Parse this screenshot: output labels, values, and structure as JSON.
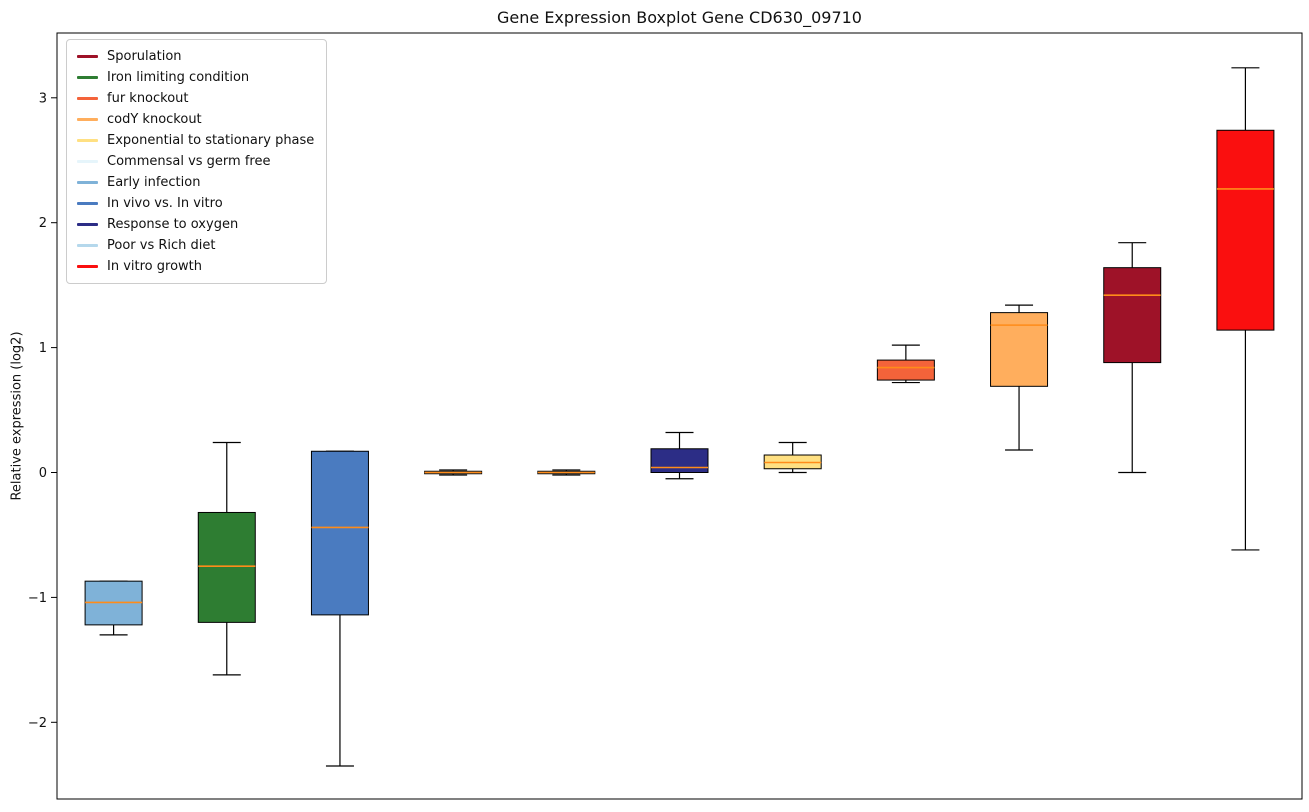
{
  "chart_data": {
    "type": "boxplot",
    "title": "Gene Expression Boxplot Gene CD630_09710",
    "xlabel": "",
    "ylabel": "Relative expression (log2)",
    "ylim": [
      -2.61,
      3.52
    ],
    "grid": false,
    "legend_position": "upper-left",
    "axis_color": "#000000",
    "median_color": "#ff8c1a",
    "y_ticks": [
      {
        "value": 3,
        "label": "3"
      },
      {
        "value": 2,
        "label": "2"
      },
      {
        "value": 1,
        "label": "1"
      },
      {
        "value": 0,
        "label": "0"
      },
      {
        "value": -1,
        "label": "−1"
      },
      {
        "value": -2,
        "label": "−2"
      }
    ],
    "legend_order": [
      "Sporulation",
      "Iron limiting condition",
      "fur knockout",
      "codY knockout",
      "Exponential to stationary phase",
      "Commensal vs germ free",
      "Early infection",
      "In vivo vs. In vitro",
      "Response to oxygen",
      "Poor vs Rich diet",
      "In vitro growth"
    ],
    "series": [
      {
        "label": "Early infection",
        "color": "#7fb2d8",
        "whisker_low": -1.3,
        "q1": -1.22,
        "median": -1.04,
        "q3": -0.87,
        "whisker_high": -0.87
      },
      {
        "label": "Iron limiting condition",
        "color": "#2e7d32",
        "whisker_low": -1.62,
        "q1": -1.2,
        "median": -0.75,
        "q3": -0.32,
        "whisker_high": 0.24
      },
      {
        "label": "In vivo vs. In vitro",
        "color": "#4a7bc0",
        "whisker_low": -2.35,
        "q1": -1.14,
        "median": -0.44,
        "q3": 0.17,
        "whisker_high": 0.17
      },
      {
        "label": "Commensal vs germ free",
        "color": "#e6f5fb",
        "whisker_low": -0.02,
        "q1": -0.01,
        "median": 0.0,
        "q3": 0.01,
        "whisker_high": 0.02
      },
      {
        "label": "Poor vs Rich diet",
        "color": "#b5d8ec",
        "whisker_low": -0.02,
        "q1": -0.01,
        "median": 0.0,
        "q3": 0.01,
        "whisker_high": 0.02
      },
      {
        "label": "Response to oxygen",
        "color": "#2c2d86",
        "whisker_low": -0.05,
        "q1": 0.0,
        "median": 0.04,
        "q3": 0.19,
        "whisker_high": 0.32
      },
      {
        "label": "Exponential to stationary phase",
        "color": "#ffe082",
        "whisker_low": 0.0,
        "q1": 0.03,
        "median": 0.08,
        "q3": 0.14,
        "whisker_high": 0.24
      },
      {
        "label": "fur knockout",
        "color": "#f4633a",
        "whisker_low": 0.72,
        "q1": 0.74,
        "median": 0.84,
        "q3": 0.9,
        "whisker_high": 1.02
      },
      {
        "label": "codY knockout",
        "color": "#ffae5d",
        "whisker_low": 0.18,
        "q1": 0.69,
        "median": 1.18,
        "q3": 1.28,
        "whisker_high": 1.34
      },
      {
        "label": "Sporulation",
        "color": "#9e1228",
        "whisker_low": 0.0,
        "q1": 0.88,
        "median": 1.42,
        "q3": 1.64,
        "whisker_high": 1.84
      },
      {
        "label": "In vitro growth",
        "color": "#fa0f0f",
        "whisker_low": -0.62,
        "q1": 1.14,
        "median": 2.27,
        "q3": 2.74,
        "whisker_high": 3.24
      }
    ]
  }
}
